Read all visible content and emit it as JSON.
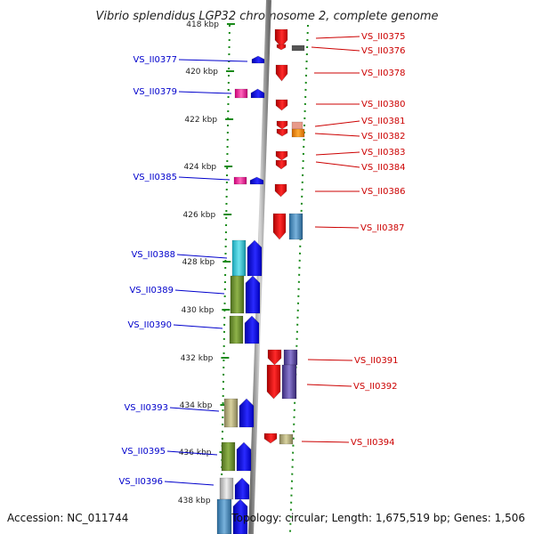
{
  "title": "Vibrio splendidus LGP32 chromosome 2, complete genome",
  "footer": {
    "accession": "Accession: NC_011744",
    "topology": "Topology: circular; Length: 1,675,519 bp; Genes: 1,506"
  },
  "colors": {
    "forward": "#0000ee",
    "reverse": "#ee0000",
    "backbone": "#9a9a9a",
    "tick": "#1a8a1a",
    "left_label": "#0000cc",
    "right_label": "#cc0000"
  },
  "scale": {
    "unit": "kbp",
    "ticks": [
      "418 kbp",
      "420 kbp",
      "422 kbp",
      "424 kbp",
      "426 kbp",
      "428 kbp",
      "430 kbp",
      "432 kbp",
      "434 kbp",
      "436 kbp",
      "438 kbp"
    ]
  },
  "left_genes": [
    "VS_II0377",
    "VS_II0379",
    "VS_II0385",
    "VS_II0388",
    "VS_II0389",
    "VS_II0390",
    "VS_II0393",
    "VS_II0395",
    "VS_II0396"
  ],
  "right_genes": [
    "VS_II0375",
    "VS_II0376",
    "VS_II0378",
    "VS_II0380",
    "VS_II0381",
    "VS_II0382",
    "VS_II0383",
    "VS_II0384",
    "VS_II0386",
    "VS_II0387",
    "VS_II0391",
    "VS_II0392",
    "VS_II0394"
  ]
}
